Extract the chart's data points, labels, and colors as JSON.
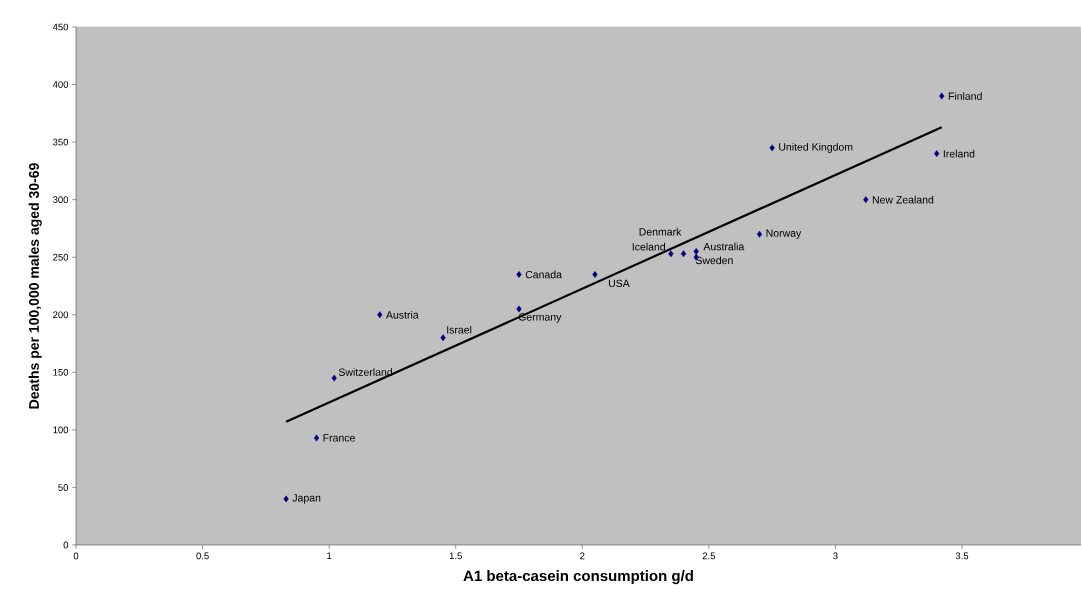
{
  "chart_data": {
    "type": "scatter",
    "xlabel": "A1 beta-casein consumption g/d",
    "ylabel": "Deaths per 100,000 males aged 30-69",
    "xlim": [
      0,
      3.97
    ],
    "ylim": [
      0,
      450
    ],
    "xticks": [
      0,
      0.5,
      1,
      1.5,
      2,
      2.5,
      3,
      3.5
    ],
    "yticks": [
      0,
      50,
      100,
      150,
      200,
      250,
      300,
      350,
      400,
      450
    ],
    "marker": "diamond",
    "series": [
      {
        "color": "#000080",
        "x": [
          0.83,
          0.95,
          1.02,
          1.2,
          1.45,
          1.75,
          1.75,
          2.05,
          2.35,
          2.4,
          2.45,
          2.45,
          2.7,
          2.75,
          3.12,
          3.4,
          3.42
        ],
        "values": [
          40,
          93,
          145,
          200,
          180,
          235,
          205,
          235,
          253,
          253,
          255,
          250,
          270,
          345,
          300,
          340,
          390
        ]
      },
      {
        "type": "line",
        "color": "#000000",
        "marker": "none",
        "x": [
          0.83,
          3.42
        ],
        "values": [
          107,
          363
        ]
      }
    ],
    "annotations": [
      {
        "text": "Japan",
        "x": 0.83,
        "y": 40
      },
      {
        "text": "France",
        "x": 0.95,
        "y": 93
      },
      {
        "text": "Switzerland",
        "x": 1.02,
        "y": 145
      },
      {
        "text": "Austria",
        "x": 1.2,
        "y": 200
      },
      {
        "text": "Israel",
        "x": 1.45,
        "y": 180
      },
      {
        "text": "Canada",
        "x": 1.75,
        "y": 235
      },
      {
        "text": "Germany",
        "x": 1.75,
        "y": 205
      },
      {
        "text": "USA",
        "x": 2.05,
        "y": 235
      },
      {
        "text": "Iceland",
        "x": 2.35,
        "y": 253
      },
      {
        "text": "Denmark",
        "x": 2.4,
        "y": 253
      },
      {
        "text": "Australia",
        "x": 2.45,
        "y": 255
      },
      {
        "text": "Sweden",
        "x": 2.45,
        "y": 250
      },
      {
        "text": "Norway",
        "x": 2.7,
        "y": 270
      },
      {
        "text": "United Kingdom",
        "x": 2.75,
        "y": 345
      },
      {
        "text": "New Zealand",
        "x": 3.12,
        "y": 300
      },
      {
        "text": "Ireland",
        "x": 3.4,
        "y": 340
      },
      {
        "text": "Finland",
        "x": 3.42,
        "y": 390
      }
    ]
  }
}
